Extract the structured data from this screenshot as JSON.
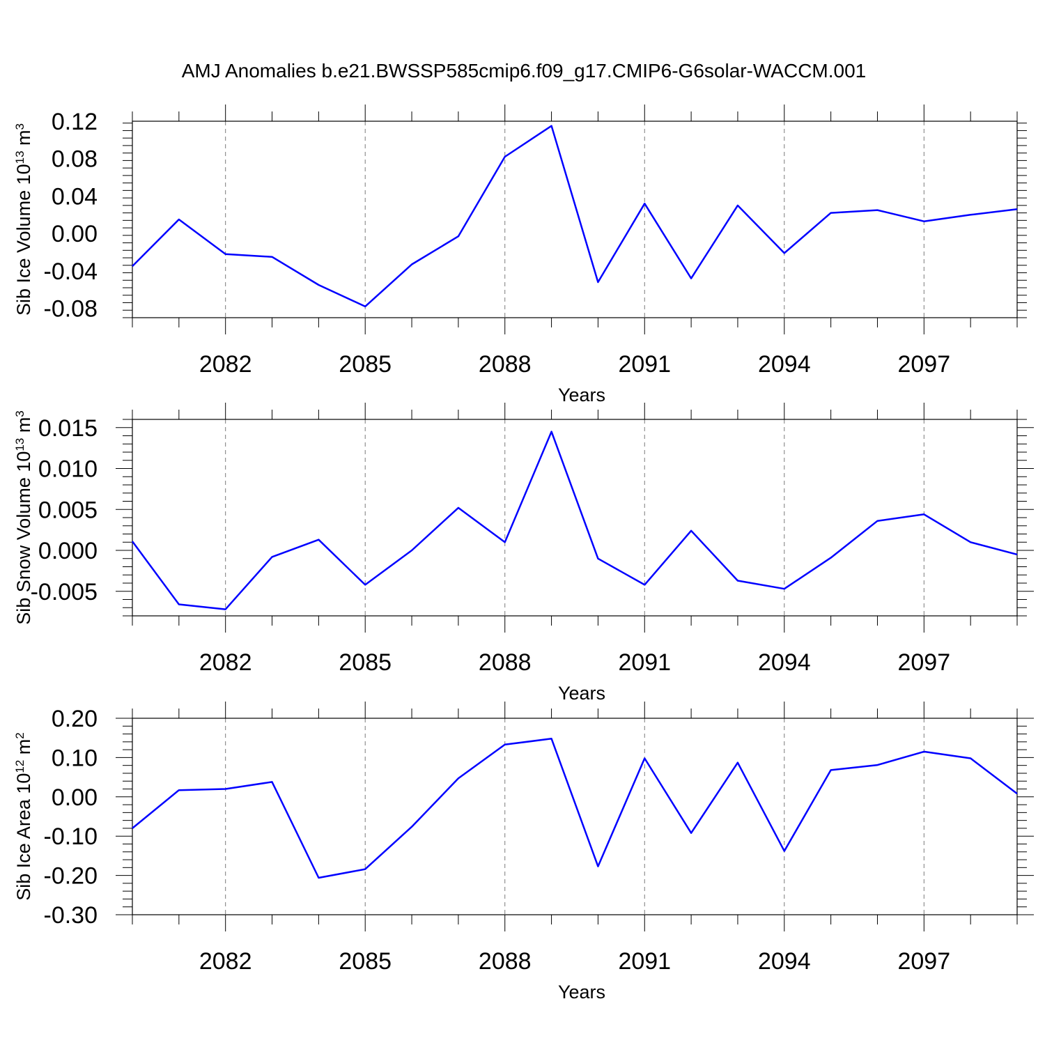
{
  "title": "AMJ Anomalies b.e21.BWSSP585cmip6.f09_g17.CMIP6-G6solar-WACCM.001",
  "chart_data": [
    {
      "type": "line",
      "xlabel": "Years",
      "ylabel": {
        "prefix": "Sib Ice Volume 10",
        "exponent": "13",
        "unit": " m",
        "unit_exponent": "3"
      },
      "x": [
        2080,
        2081,
        2082,
        2083,
        2084,
        2085,
        2086,
        2087,
        2088,
        2089,
        2090,
        2091,
        2092,
        2093,
        2094,
        2095,
        2096,
        2097,
        2098,
        2099
      ],
      "values": [
        -0.035,
        0.015,
        -0.022,
        -0.025,
        -0.055,
        -0.078,
        -0.033,
        -0.003,
        0.082,
        0.115,
        -0.052,
        0.032,
        -0.048,
        0.03,
        -0.021,
        0.022,
        0.025,
        0.013,
        0.02,
        0.026
      ],
      "xlim": [
        2080,
        2099
      ],
      "ylim": [
        -0.09,
        0.12
      ],
      "xticks": [
        2082,
        2085,
        2088,
        2091,
        2094,
        2097
      ],
      "xtick_labels": [
        "2082",
        "2085",
        "2088",
        "2091",
        "2094",
        "2097"
      ],
      "yticks": [
        -0.08,
        -0.04,
        0.0,
        0.04,
        0.08,
        0.12
      ],
      "ytick_labels": [
        "-0.08",
        "-0.04",
        "0.00",
        "0.04",
        "0.08",
        "0.12"
      ],
      "grid": "vertical dashed at major ticks",
      "color": "#0000ff"
    },
    {
      "type": "line",
      "xlabel": "Years",
      "ylabel": {
        "prefix": "Sib Snow Volume 10",
        "exponent": "13",
        "unit": " m",
        "unit_exponent": "3"
      },
      "x": [
        2080,
        2081,
        2082,
        2083,
        2084,
        2085,
        2086,
        2087,
        2088,
        2089,
        2090,
        2091,
        2092,
        2093,
        2094,
        2095,
        2096,
        2097,
        2098,
        2099
      ],
      "values": [
        0.0011,
        -0.0066,
        -0.0072,
        -0.0008,
        0.0013,
        -0.0042,
        0.0,
        0.0052,
        0.001,
        0.0145,
        -0.001,
        -0.0042,
        0.0024,
        -0.0037,
        -0.0047,
        -0.0009,
        0.0036,
        0.0044,
        0.001,
        -0.0005
      ],
      "xlim": [
        2080,
        2099
      ],
      "ylim": [
        -0.008,
        0.016
      ],
      "xticks": [
        2082,
        2085,
        2088,
        2091,
        2094,
        2097
      ],
      "xtick_labels": [
        "2082",
        "2085",
        "2088",
        "2091",
        "2094",
        "2097"
      ],
      "yticks": [
        -0.005,
        0.0,
        0.005,
        0.01,
        0.015
      ],
      "ytick_labels": [
        "-0.005",
        "0.000",
        "0.005",
        "0.010",
        "0.015"
      ],
      "grid": "vertical dashed at major ticks",
      "color": "#0000ff"
    },
    {
      "type": "line",
      "xlabel": "Years",
      "ylabel": {
        "prefix": "Sib Ice Area 10",
        "exponent": "12",
        "unit": " m",
        "unit_exponent": "2"
      },
      "x": [
        2080,
        2081,
        2082,
        2083,
        2084,
        2085,
        2086,
        2087,
        2088,
        2089,
        2090,
        2091,
        2092,
        2093,
        2094,
        2095,
        2096,
        2097,
        2098,
        2099
      ],
      "values": [
        -0.08,
        0.017,
        0.02,
        0.038,
        -0.206,
        -0.184,
        -0.076,
        0.047,
        0.133,
        0.148,
        -0.177,
        0.098,
        -0.092,
        0.087,
        -0.138,
        0.068,
        0.081,
        0.115,
        0.098,
        0.008
      ],
      "xlim": [
        2080,
        2099
      ],
      "ylim": [
        -0.3,
        0.2
      ],
      "xticks": [
        2082,
        2085,
        2088,
        2091,
        2094,
        2097
      ],
      "xtick_labels": [
        "2082",
        "2085",
        "2088",
        "2091",
        "2094",
        "2097"
      ],
      "yticks": [
        -0.3,
        -0.2,
        -0.1,
        0.0,
        0.1,
        0.2
      ],
      "ytick_labels": [
        "-0.30",
        "-0.20",
        "-0.10",
        "0.00",
        "0.10",
        "0.20"
      ],
      "grid": "vertical dashed at major ticks",
      "color": "#0000ff"
    }
  ]
}
